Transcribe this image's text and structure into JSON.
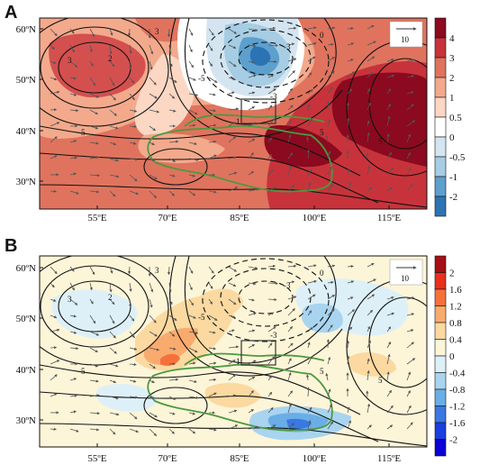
{
  "panels": [
    {
      "letter": "A",
      "lat_labels": [
        "60ºN",
        "50ºN",
        "40ºN",
        "30ºN"
      ],
      "lon_labels": [
        "55ºE",
        "70ºE",
        "85ºE",
        "100ºE",
        "115ºE"
      ],
      "vector_reference": "10",
      "contour_labels": [
        "2",
        "3",
        "5",
        "5",
        "-3",
        "-3",
        "-5",
        "0",
        "3",
        "5",
        "1"
      ],
      "colorbar": {
        "labels": [
          "4",
          "3",
          "2",
          "1",
          "0.5",
          "0",
          "-0.5",
          "-1",
          "-2"
        ],
        "colors": [
          "#8b0a1f",
          "#c8333b",
          "#e0735e",
          "#f3a98c",
          "#fbd7c4",
          "#ffffff",
          "#d4e5f1",
          "#a6cde3",
          "#5d9fcd",
          "#2c73b3"
        ]
      }
    },
    {
      "letter": "B",
      "lat_labels": [
        "60ºN",
        "50ºN",
        "40ºN",
        "30ºN"
      ],
      "lon_labels": [
        "55ºE",
        "70ºE",
        "85ºE",
        "100ºE",
        "115ºE"
      ],
      "vector_reference": "10",
      "contour_labels": [
        "2",
        "3",
        "5",
        "5",
        "-3",
        "-3",
        "-5",
        "0",
        "3",
        "5",
        "1"
      ],
      "colorbar": {
        "labels": [
          "2",
          "1.6",
          "1.2",
          "0.8",
          "0.4",
          "0",
          "-0.4",
          "-0.8",
          "-1.2",
          "-1.6",
          "-2"
        ],
        "colors": [
          "#a50f15",
          "#e8301e",
          "#f6703c",
          "#f9ab6e",
          "#fbd9a0",
          "#fdf5d8",
          "#ddf0f8",
          "#a9d4f0",
          "#6aaee6",
          "#3a78e4",
          "#1a3fe0",
          "#0c00d6"
        ]
      }
    }
  ]
}
